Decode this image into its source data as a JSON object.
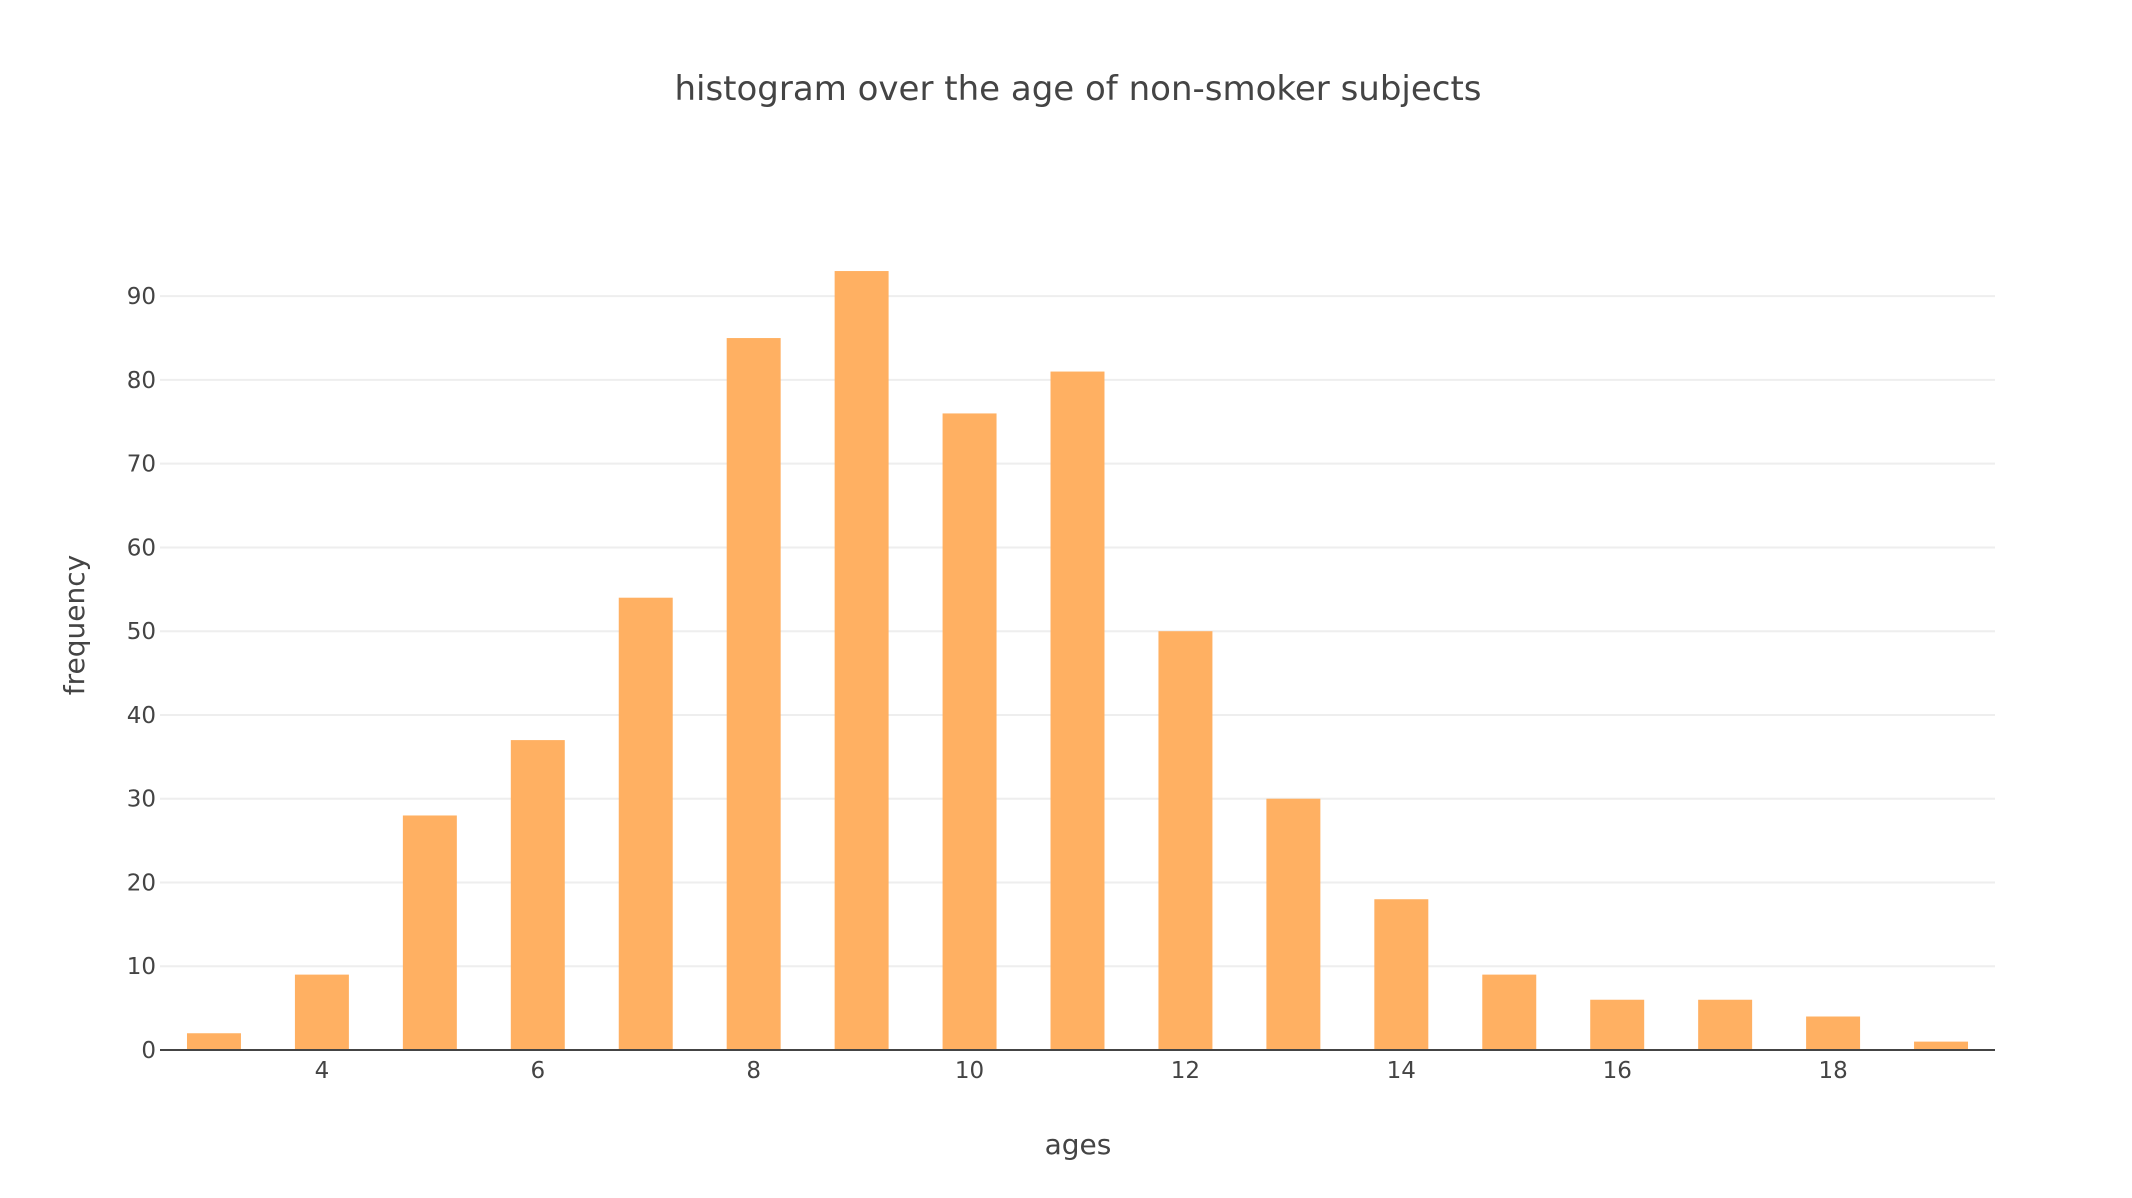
{
  "chart_data": {
    "type": "bar",
    "title": "histogram over the age of non-smoker subjects",
    "xlabel": "ages",
    "ylabel": "frequency",
    "x": [
      3,
      4,
      5,
      6,
      7,
      8,
      9,
      10,
      11,
      12,
      13,
      14,
      15,
      16,
      17,
      18,
      19
    ],
    "values": [
      2,
      9,
      28,
      37,
      54,
      85,
      93,
      76,
      81,
      50,
      30,
      18,
      9,
      6,
      6,
      4,
      1
    ],
    "xlim": [
      2.5,
      19.5
    ],
    "ylim": [
      0,
      97.9
    ],
    "xticks": [
      4,
      6,
      8,
      10,
      12,
      14,
      16,
      18
    ],
    "yticks": [
      0,
      10,
      20,
      30,
      40,
      50,
      60,
      70,
      80,
      90
    ],
    "grid": true,
    "bar_color": "#ffb062",
    "grid_color": "#eeeeee",
    "text_color": "#444444"
  }
}
